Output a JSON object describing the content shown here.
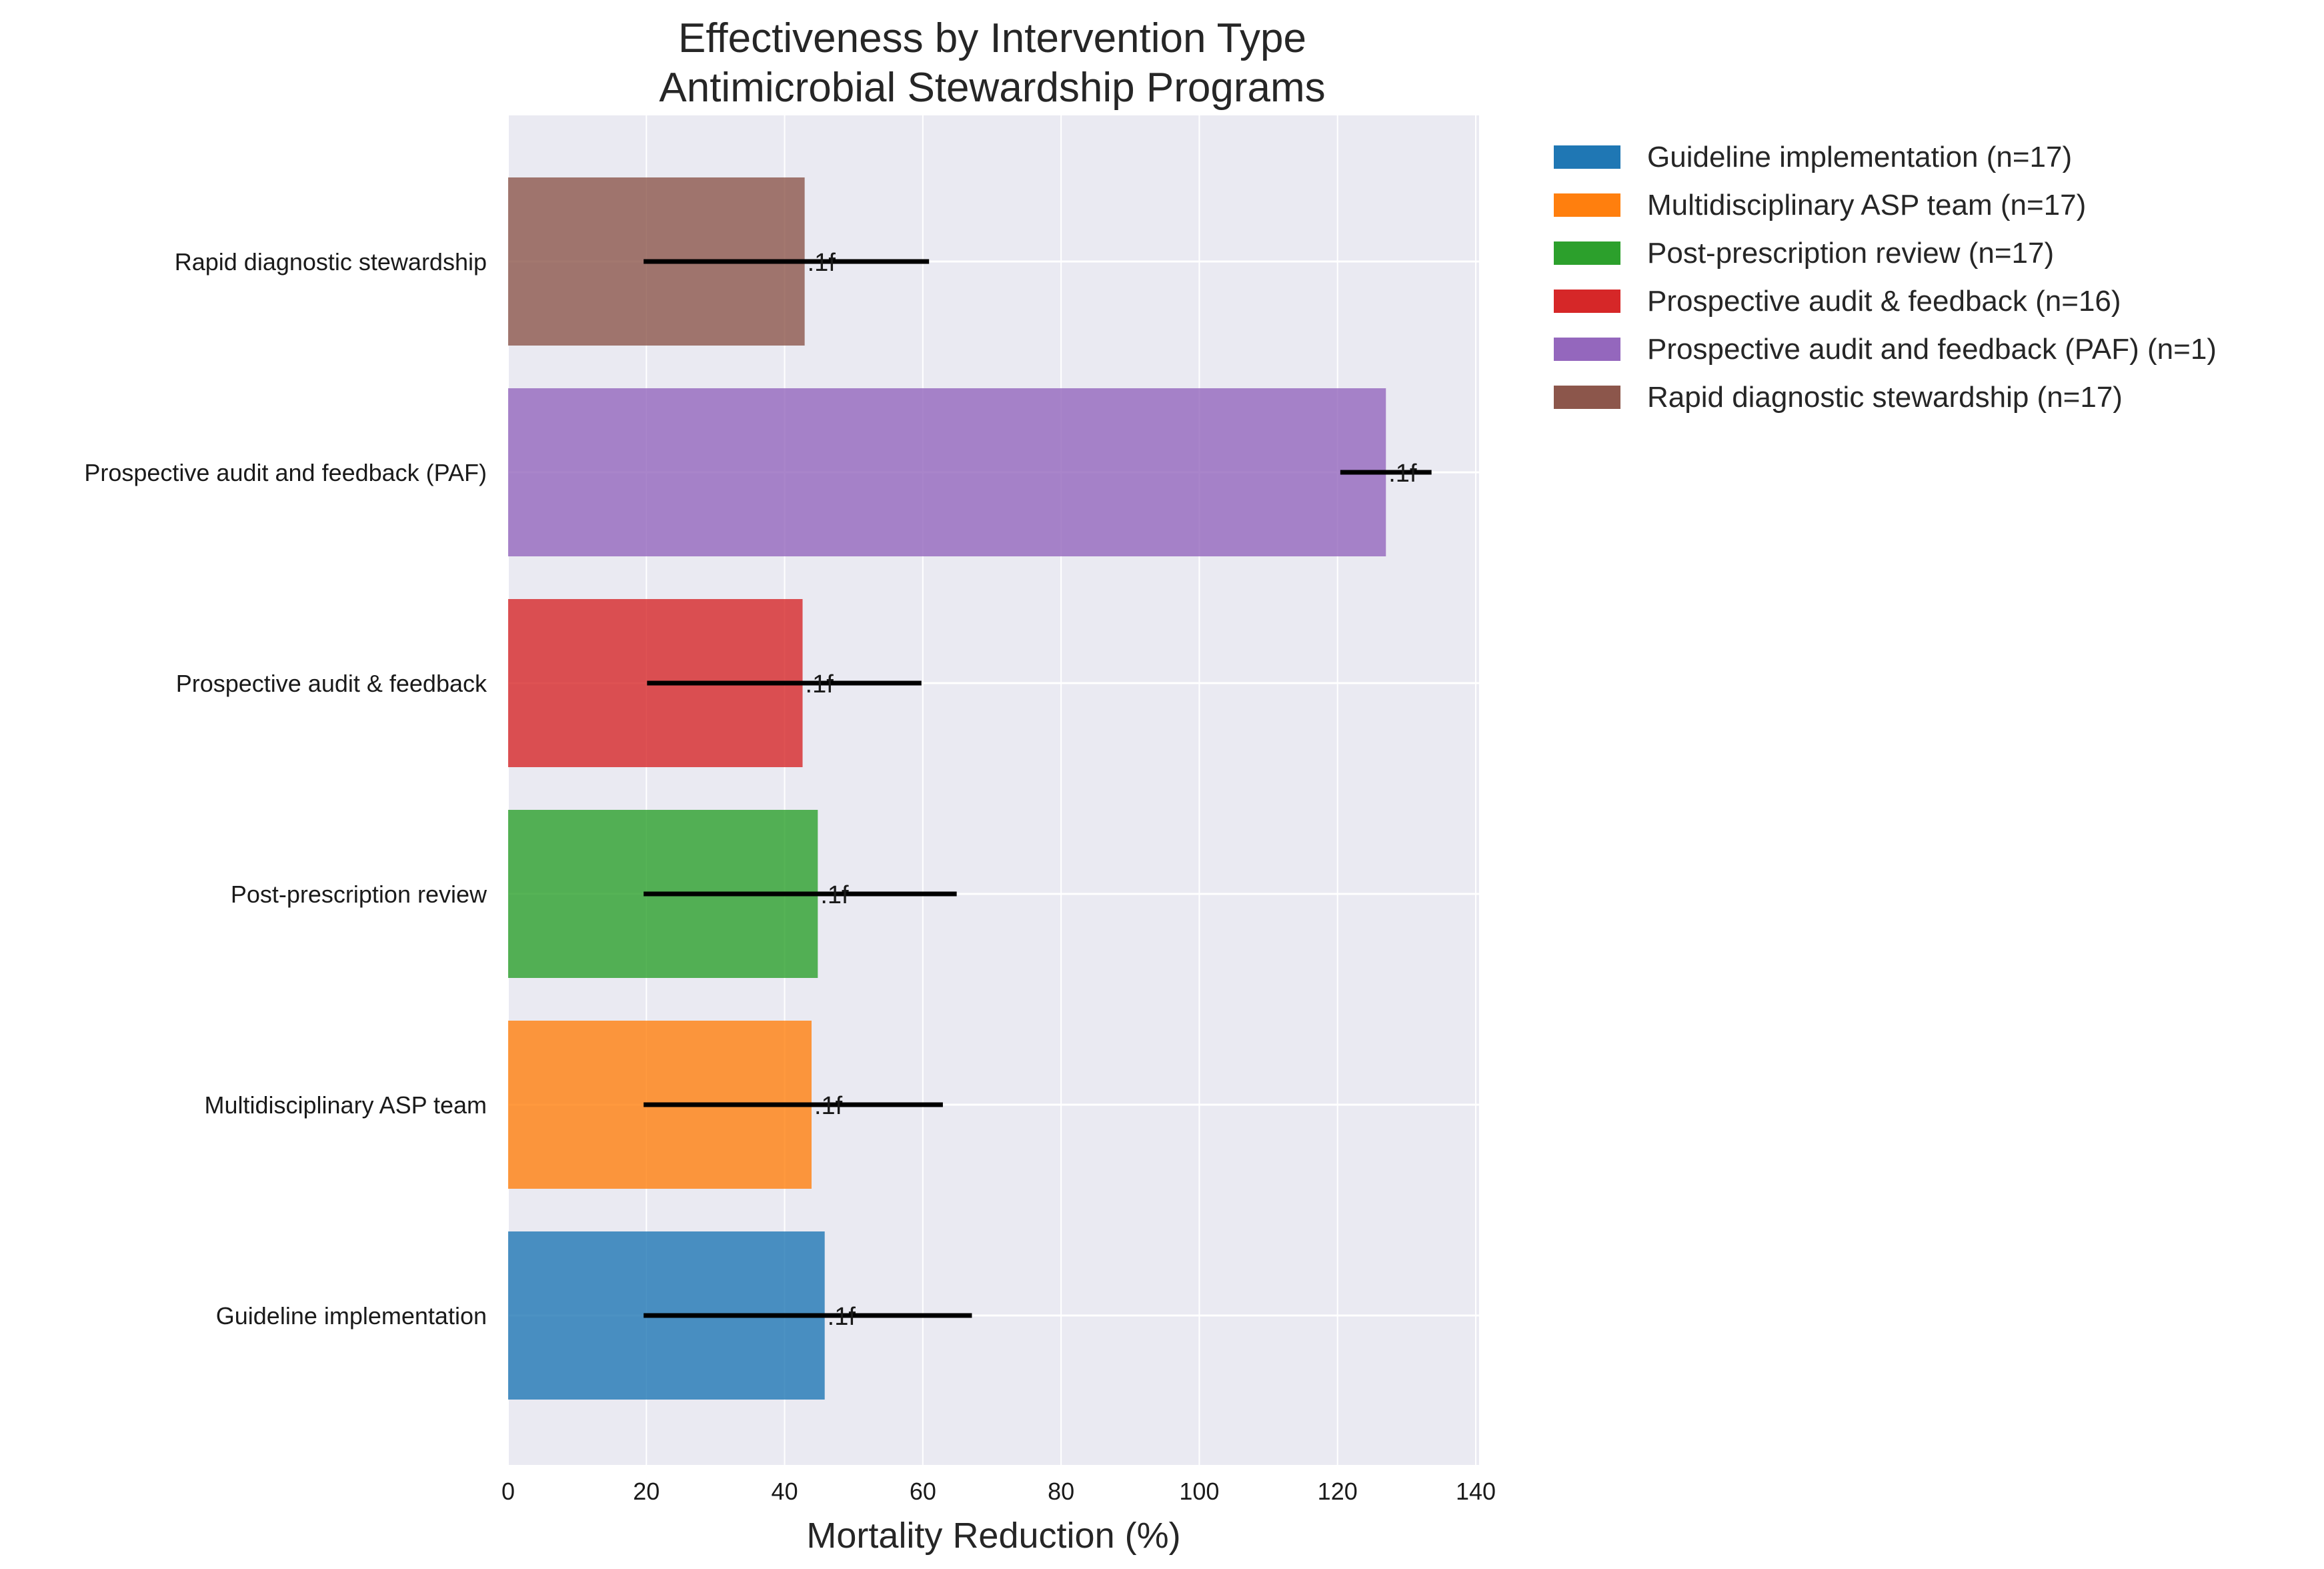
{
  "chart_data": {
    "type": "bar",
    "orientation": "horizontal",
    "title_lines": [
      "Effectiveness by Intervention Type",
      "Antimicrobial Stewardship Programs"
    ],
    "xlabel": "Mortality Reduction (%)",
    "ylabel": "",
    "xlim": [
      0,
      140
    ],
    "xticks": [
      0,
      20,
      40,
      60,
      80,
      100,
      120,
      140
    ],
    "grid": true,
    "legend_position": "outside-top-right",
    "categories": [
      "Guideline implementation",
      "Multidisciplinary ASP team",
      "Post-prescription review",
      "Prospective audit & feedback",
      "Prospective audit and feedback (PAF)",
      "Rapid diagnostic stewardship"
    ],
    "values": [
      45.8,
      43.9,
      44.8,
      42.6,
      127.0,
      42.9
    ],
    "error_low": [
      19.6,
      19.6,
      19.6,
      20.1,
      120.4,
      19.6
    ],
    "error_high": [
      67.1,
      62.9,
      64.9,
      59.8,
      133.6,
      60.9
    ],
    "bar_labels": [
      ".1f",
      ".1f",
      ".1f",
      ".1f",
      ".1f",
      ".1f"
    ],
    "colors": [
      "#1f77b4",
      "#ff7f0e",
      "#2ca02c",
      "#d62728",
      "#9467bd",
      "#8c564b"
    ],
    "legend": [
      "Guideline implementation (n=17)",
      "Multidisciplinary ASP team (n=17)",
      "Post-prescription review (n=17)",
      "Prospective audit & feedback (n=16)",
      "Prospective audit and feedback (PAF) (n=1)",
      "Rapid diagnostic stewardship (n=17)"
    ]
  }
}
